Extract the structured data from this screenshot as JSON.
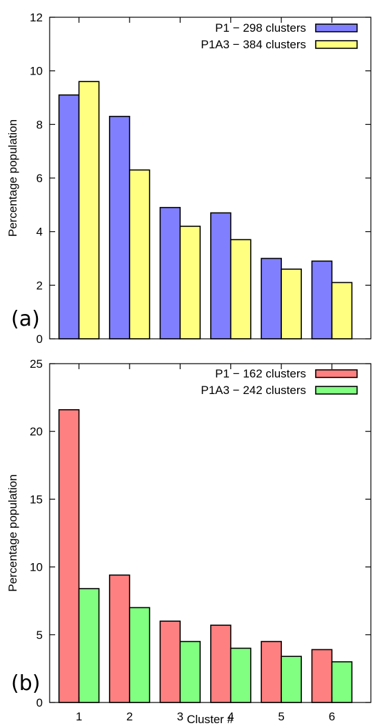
{
  "chart_data": [
    {
      "type": "bar",
      "panel_label": "(a)",
      "ylabel": "Percentage population",
      "xlabel": "",
      "ylim": [
        0,
        12
      ],
      "yticks": [
        0,
        2,
        4,
        6,
        8,
        10,
        12
      ],
      "categories": [
        "1",
        "2",
        "3",
        "4",
        "5",
        "6"
      ],
      "show_xtick_labels": false,
      "grid": false,
      "legend_position": "top-right",
      "series": [
        {
          "name": "P1 − 298 clusters",
          "color": "#8080ff",
          "values": [
            9.1,
            8.3,
            4.9,
            4.7,
            3.0,
            2.9
          ]
        },
        {
          "name": "P1A3 − 384 clusters",
          "color": "#ffff80",
          "values": [
            9.6,
            6.3,
            4.2,
            3.7,
            2.6,
            2.1
          ]
        }
      ]
    },
    {
      "type": "bar",
      "panel_label": "(b)",
      "ylabel": "Percentage population",
      "xlabel": "Cluster #",
      "ylim": [
        0,
        25
      ],
      "yticks": [
        0,
        5,
        10,
        15,
        20,
        25
      ],
      "categories": [
        "1",
        "2",
        "3",
        "4",
        "5",
        "6"
      ],
      "show_xtick_labels": true,
      "grid": false,
      "legend_position": "top-right",
      "series": [
        {
          "name": "P1 − 162 clusters",
          "color": "#ff8080",
          "values": [
            21.6,
            9.4,
            6.0,
            5.7,
            4.5,
            3.9
          ]
        },
        {
          "name": "P1A3 − 242 clusters",
          "color": "#80ff80",
          "values": [
            8.4,
            7.0,
            4.5,
            4.0,
            3.4,
            3.0
          ]
        }
      ]
    }
  ]
}
